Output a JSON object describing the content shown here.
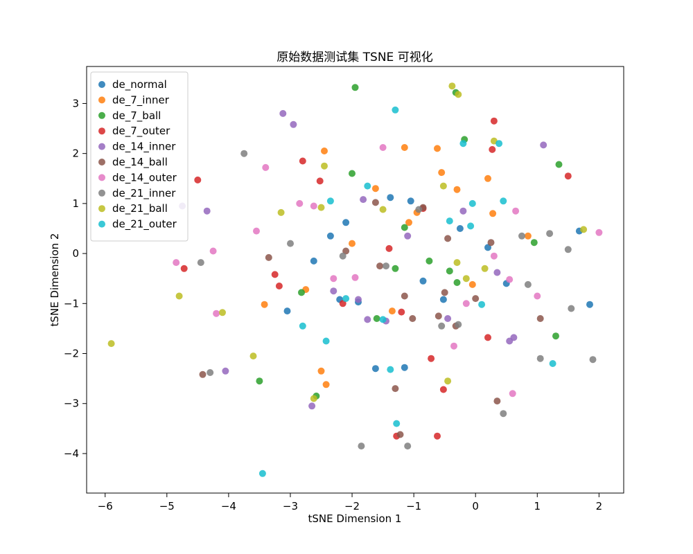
{
  "figure": {
    "background": "#ffffff"
  },
  "chart_data": {
    "type": "scatter",
    "title": "原始数据测试集 TSNE 可视化",
    "xlabel": "tSNE Dimension 1",
    "ylabel": "tSNE Dimension 2",
    "xlim": [
      -6.3,
      2.4
    ],
    "ylim": [
      -4.79,
      3.74
    ],
    "xticks": [
      -6,
      -5,
      -4,
      -3,
      -2,
      -1,
      0,
      1,
      2
    ],
    "yticks": [
      -4,
      -3,
      -2,
      -1,
      0,
      1,
      2,
      3
    ],
    "grid": false,
    "legend_position": "upper left",
    "legend_background": "#ffffff",
    "legend_border": "#cccccc",
    "marker_alpha": 0.85,
    "marker_radius": 5,
    "series": [
      {
        "name": "de_normal",
        "color": "#1f77b4",
        "points": [
          [
            -2.1,
            0.62
          ],
          [
            -2.62,
            -0.15
          ],
          [
            -3.05,
            -1.15
          ],
          [
            -1.9,
            -0.97
          ],
          [
            -2.2,
            -0.92
          ],
          [
            -1.62,
            -2.3
          ],
          [
            -1.15,
            -2.28
          ],
          [
            1.85,
            -1.02
          ],
          [
            1.68,
            0.45
          ],
          [
            -0.25,
            0.5
          ],
          [
            -1.38,
            1.12
          ],
          [
            -0.52,
            -0.92
          ],
          [
            0.2,
            0.12
          ],
          [
            -0.85,
            -0.55
          ],
          [
            -2.35,
            0.35
          ],
          [
            -1.05,
            1.05
          ],
          [
            0.5,
            -0.6
          ]
        ]
      },
      {
        "name": "de_7_inner",
        "color": "#ff7f0e",
        "points": [
          [
            -2.45,
            2.05
          ],
          [
            -1.15,
            2.12
          ],
          [
            -0.62,
            2.1
          ],
          [
            -0.55,
            1.62
          ],
          [
            -0.95,
            0.82
          ],
          [
            -1.08,
            0.62
          ],
          [
            0.2,
            1.5
          ],
          [
            0.28,
            0.8
          ],
          [
            -2.5,
            -2.35
          ],
          [
            -2.42,
            -2.62
          ],
          [
            -2.75,
            -0.72
          ],
          [
            -3.42,
            -1.02
          ],
          [
            -1.35,
            -1.15
          ],
          [
            0.85,
            0.35
          ],
          [
            -0.05,
            -0.62
          ],
          [
            -1.62,
            1.3
          ],
          [
            -0.3,
            1.28
          ],
          [
            -2.0,
            0.2
          ]
        ]
      },
      {
        "name": "de_7_ball",
        "color": "#2ca02c",
        "points": [
          [
            -1.95,
            3.32
          ],
          [
            -0.32,
            3.22
          ],
          [
            1.35,
            1.78
          ],
          [
            1.3,
            -1.65
          ],
          [
            -3.5,
            -2.55
          ],
          [
            -2.58,
            -2.85
          ],
          [
            -0.42,
            -0.35
          ],
          [
            -0.3,
            -0.58
          ],
          [
            -1.15,
            0.52
          ],
          [
            -2.82,
            -0.78
          ],
          [
            -0.18,
            2.28
          ],
          [
            0.95,
            0.22
          ],
          [
            -1.6,
            -1.3
          ],
          [
            -0.75,
            -0.15
          ],
          [
            -2.0,
            1.6
          ],
          [
            -1.3,
            -0.3
          ]
        ]
      },
      {
        "name": "de_7_outer",
        "color": "#d62728",
        "points": [
          [
            0.3,
            2.65
          ],
          [
            0.27,
            2.08
          ],
          [
            1.5,
            1.55
          ],
          [
            -2.8,
            1.85
          ],
          [
            -2.52,
            1.45
          ],
          [
            -4.5,
            1.47
          ],
          [
            -4.72,
            -0.3
          ],
          [
            -3.25,
            -0.42
          ],
          [
            -3.18,
            -0.65
          ],
          [
            -1.2,
            -1.17
          ],
          [
            -0.72,
            -2.1
          ],
          [
            -0.52,
            -2.72
          ],
          [
            -1.28,
            -3.65
          ],
          [
            -0.62,
            -3.65
          ],
          [
            0.2,
            -1.68
          ],
          [
            -2.15,
            -1.0
          ],
          [
            -1.4,
            0.1
          ],
          [
            -0.85,
            0.9
          ]
        ]
      },
      {
        "name": "de_14_inner",
        "color": "#9467bd",
        "points": [
          [
            -3.12,
            2.8
          ],
          [
            -2.95,
            2.58
          ],
          [
            -4.75,
            0.95
          ],
          [
            -4.35,
            0.85
          ],
          [
            1.1,
            2.17
          ],
          [
            -1.82,
            1.08
          ],
          [
            -1.9,
            -0.92
          ],
          [
            -1.75,
            -1.32
          ],
          [
            -1.45,
            -1.35
          ],
          [
            -2.65,
            -3.05
          ],
          [
            0.55,
            -1.75
          ],
          [
            -4.05,
            -2.35
          ],
          [
            0.35,
            -0.38
          ],
          [
            -0.45,
            -1.3
          ],
          [
            0.62,
            -1.68
          ],
          [
            -2.3,
            -0.75
          ],
          [
            -1.1,
            0.35
          ],
          [
            -0.2,
            0.85
          ]
        ]
      },
      {
        "name": "de_14_ball",
        "color": "#8c564b",
        "points": [
          [
            -1.55,
            -0.25
          ],
          [
            -0.85,
            0.92
          ],
          [
            -0.5,
            -0.78
          ],
          [
            -1.02,
            -1.3
          ],
          [
            -0.32,
            -1.45
          ],
          [
            -3.35,
            -0.08
          ],
          [
            -4.42,
            -2.42
          ],
          [
            -1.3,
            -2.7
          ],
          [
            0.35,
            -2.95
          ],
          [
            -1.22,
            -3.62
          ],
          [
            0.25,
            0.22
          ],
          [
            1.05,
            -1.3
          ],
          [
            -1.62,
            1.02
          ],
          [
            -0.6,
            -1.25
          ],
          [
            -2.1,
            0.05
          ],
          [
            -1.15,
            -0.85
          ],
          [
            0.0,
            -0.9
          ],
          [
            -0.45,
            0.3
          ]
        ]
      },
      {
        "name": "de_14_outer",
        "color": "#e377c2",
        "points": [
          [
            -3.4,
            1.72
          ],
          [
            -2.62,
            0.95
          ],
          [
            -4.25,
            0.05
          ],
          [
            -4.85,
            -0.18
          ],
          [
            -4.2,
            -1.2
          ],
          [
            0.65,
            0.85
          ],
          [
            0.55,
            -0.52
          ],
          [
            1.0,
            -0.85
          ],
          [
            2.0,
            0.42
          ],
          [
            -3.55,
            0.45
          ],
          [
            0.6,
            -2.8
          ],
          [
            -0.35,
            -1.85
          ],
          [
            -1.95,
            -0.48
          ],
          [
            -2.3,
            -0.5
          ],
          [
            -0.15,
            -1.0
          ],
          [
            0.3,
            -0.05
          ],
          [
            -2.85,
            1.0
          ],
          [
            -1.5,
            2.12
          ]
        ]
      },
      {
        "name": "de_21_inner",
        "color": "#7f7f7f",
        "points": [
          [
            -3.75,
            2.0
          ],
          [
            -4.45,
            -0.18
          ],
          [
            -3.0,
            0.2
          ],
          [
            -2.15,
            -0.05
          ],
          [
            -1.45,
            -0.25
          ],
          [
            -0.92,
            0.88
          ],
          [
            0.75,
            0.35
          ],
          [
            1.5,
            0.08
          ],
          [
            1.55,
            -1.1
          ],
          [
            1.05,
            -2.1
          ],
          [
            0.45,
            -3.2
          ],
          [
            -1.1,
            -3.85
          ],
          [
            -1.85,
            -3.85
          ],
          [
            -0.55,
            -1.45
          ],
          [
            -0.28,
            -1.42
          ],
          [
            1.2,
            0.4
          ],
          [
            0.85,
            -0.62
          ],
          [
            -4.3,
            -2.38
          ],
          [
            1.9,
            -2.12
          ]
        ]
      },
      {
        "name": "de_21_ball",
        "color": "#bcbd22",
        "points": [
          [
            -0.38,
            3.35
          ],
          [
            -0.28,
            3.18
          ],
          [
            -2.45,
            1.75
          ],
          [
            -0.52,
            1.35
          ],
          [
            -3.15,
            0.82
          ],
          [
            -5.9,
            -1.8
          ],
          [
            -4.8,
            -0.85
          ],
          [
            -4.1,
            -1.18
          ],
          [
            -3.6,
            -2.05
          ],
          [
            -0.15,
            -0.5
          ],
          [
            0.3,
            2.25
          ],
          [
            -2.5,
            0.92
          ],
          [
            -0.3,
            -0.18
          ],
          [
            -1.5,
            0.88
          ],
          [
            0.15,
            -0.3
          ],
          [
            -2.62,
            -2.9
          ],
          [
            1.75,
            0.48
          ],
          [
            -0.45,
            -2.55
          ]
        ]
      },
      {
        "name": "de_21_outer",
        "color": "#17becf",
        "points": [
          [
            -1.3,
            2.87
          ],
          [
            -0.2,
            2.2
          ],
          [
            -1.75,
            1.35
          ],
          [
            -0.05,
            1.0
          ],
          [
            -0.42,
            0.65
          ],
          [
            -2.1,
            -0.9
          ],
          [
            -2.8,
            -1.45
          ],
          [
            -2.42,
            -1.75
          ],
          [
            -1.5,
            -1.32
          ],
          [
            -3.45,
            -4.4
          ],
          [
            -1.28,
            -3.4
          ],
          [
            1.25,
            -2.2
          ],
          [
            0.1,
            -1.02
          ],
          [
            -2.35,
            1.05
          ],
          [
            -1.38,
            -2.32
          ],
          [
            0.45,
            1.05
          ],
          [
            -0.08,
            0.55
          ],
          [
            0.38,
            2.2
          ]
        ]
      }
    ]
  }
}
